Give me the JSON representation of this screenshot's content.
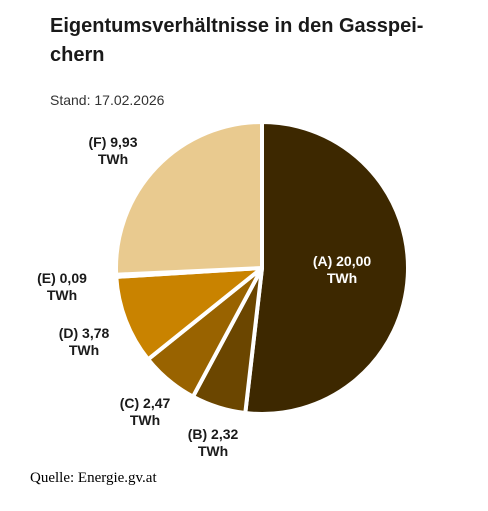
{
  "title": "Eigentumsverhältnisse in den Gasspeichern",
  "title_line1": "Eigentumsverhältnisse in den Gasspei-",
  "title_line2": "chern",
  "subtitle": "Stand: 17.02.2026",
  "source": "Quelle: Energie.gv.at",
  "chart_data": {
    "type": "pie",
    "unit": "TWh",
    "slices": [
      {
        "label": "(A) 20,00",
        "unit_label": "TWh",
        "value": 20.0,
        "color": "#3d2800",
        "label_color": "#ffffff"
      },
      {
        "label": "(B) 2,32",
        "unit_label": "TWh",
        "value": 2.32,
        "color": "#6b4600",
        "label_color": "#1a1a1a"
      },
      {
        "label": "(C) 2,47",
        "unit_label": "TWh",
        "value": 2.47,
        "color": "#996300",
        "label_color": "#1a1a1a"
      },
      {
        "label": "(D) 3,78",
        "unit_label": "TWh",
        "value": 3.78,
        "color": "#c98300",
        "label_color": "#1a1a1a"
      },
      {
        "label": "(E) 0,09",
        "unit_label": "TWh",
        "value": 0.09,
        "color": "#e0a81e",
        "label_color": "#1a1a1a"
      },
      {
        "label": "(F) 9,93",
        "unit_label": "TWh",
        "value": 9.93,
        "color": "#e9ca8f",
        "label_color": "#1a1a1a"
      }
    ]
  }
}
